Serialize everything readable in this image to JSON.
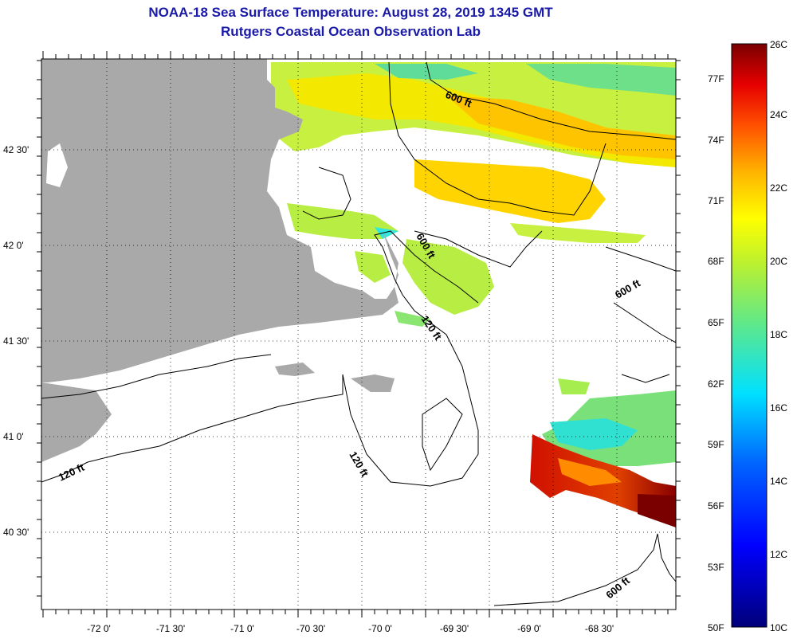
{
  "title": {
    "line1": "NOAA-18 Sea Surface Temperature:  August 28, 2019 1345 GMT",
    "line2": "Rutgers Coastal Ocean Observation Lab"
  },
  "axes": {
    "lon_ticks": [
      "-72 0'",
      "-71 30'",
      "-71 0'",
      "-70 30'",
      "-70 0'",
      "-69 30'",
      "-69 0'",
      "-68 30'"
    ],
    "lat_ticks": [
      "42 30'",
      "42 0'",
      "41 30'",
      "41 0'",
      "40 30'"
    ]
  },
  "contour_labels": [
    "600 ft",
    "600 ft",
    "600 ft",
    "600 ft",
    "120 ft",
    "120 ft",
    "120 ft"
  ],
  "colorbar": {
    "celsius": [
      "26C",
      "24C",
      "22C",
      "20C",
      "18C",
      "16C",
      "14C",
      "12C",
      "10C"
    ],
    "fahrenheit": [
      "77F",
      "74F",
      "71F",
      "68F",
      "65F",
      "62F",
      "59F",
      "56F",
      "53F",
      "50F"
    ],
    "range_c": [
      10,
      26
    ]
  },
  "colors": {
    "land": "#a9a9a9",
    "title": "#1a1aa8"
  }
}
